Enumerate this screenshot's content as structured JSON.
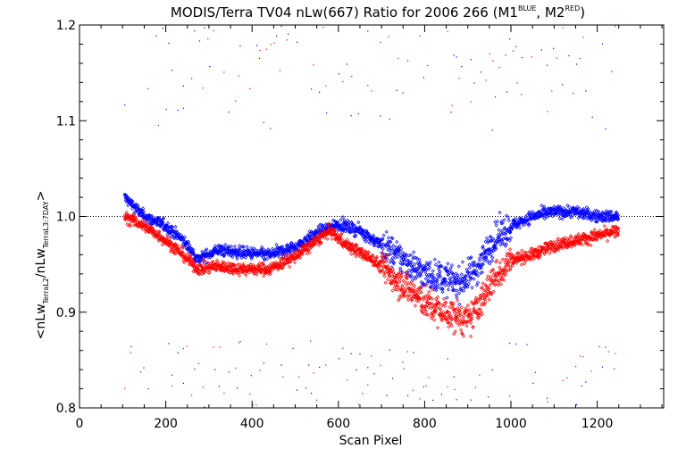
{
  "chart_data": {
    "type": "scatter",
    "title_main": "MODIS/Terra TV04 nLw(667) Ratio for 2006 266 (M1",
    "title_sup1": "BLUE",
    "title_mid": ", M2",
    "title_sup2": "RED",
    "title_end": ")",
    "xlabel": "Scan Pixel",
    "ylabel_parts": {
      "open": "<nLw",
      "sub1": "TerraL2",
      "mid": "/nLw",
      "sub2": "TerraL3:7DAY",
      "close": ">"
    },
    "xlim": [
      0,
      1354
    ],
    "ylim": [
      0.8,
      1.2
    ],
    "x_ticks": [
      0,
      200,
      400,
      600,
      800,
      1000,
      1200
    ],
    "x_tick_labels": [
      "0",
      "200",
      "400",
      "600",
      "800",
      "1000",
      "1200"
    ],
    "y_ticks": [
      0.8,
      0.9,
      1.0,
      1.1,
      1.2
    ],
    "y_tick_labels": [
      "0.8",
      "0.9",
      "1.0",
      "1.1",
      "1.2"
    ],
    "reference_line": 1.0,
    "series": [
      {
        "color": "#0000ff",
        "trend": [
          [
            105,
            1.02
          ],
          [
            150,
            1.0
          ],
          [
            200,
            0.99
          ],
          [
            240,
            0.975
          ],
          [
            275,
            0.955
          ],
          [
            320,
            0.965
          ],
          [
            380,
            0.962
          ],
          [
            440,
            0.96
          ],
          [
            500,
            0.968
          ],
          [
            560,
            0.985
          ],
          [
            600,
            0.992
          ],
          [
            650,
            0.985
          ],
          [
            700,
            0.97
          ],
          [
            750,
            0.955
          ],
          [
            800,
            0.94
          ],
          [
            850,
            0.935
          ],
          [
            880,
            0.93
          ],
          [
            920,
            0.945
          ],
          [
            960,
            0.975
          ],
          [
            1000,
            0.99
          ],
          [
            1050,
            1.0
          ],
          [
            1100,
            1.005
          ],
          [
            1150,
            1.005
          ],
          [
            1200,
            1.0
          ],
          [
            1250,
            1.0
          ]
        ],
        "outliers_high_x": [
          105,
          1254
        ],
        "outliers_low_x": [
          105,
          1254
        ]
      },
      {
        "color": "#ff0000",
        "trend": [
          [
            105,
            1.0
          ],
          [
            150,
            0.99
          ],
          [
            200,
            0.975
          ],
          [
            240,
            0.96
          ],
          [
            275,
            0.945
          ],
          [
            320,
            0.948
          ],
          [
            380,
            0.945
          ],
          [
            440,
            0.945
          ],
          [
            500,
            0.958
          ],
          [
            560,
            0.978
          ],
          [
            580,
            0.985
          ],
          [
            620,
            0.97
          ],
          [
            680,
            0.955
          ],
          [
            720,
            0.94
          ],
          [
            760,
            0.925
          ],
          [
            800,
            0.91
          ],
          [
            840,
            0.9
          ],
          [
            880,
            0.895
          ],
          [
            900,
            0.89
          ],
          [
            930,
            0.91
          ],
          [
            960,
            0.935
          ],
          [
            1000,
            0.955
          ],
          [
            1050,
            0.96
          ],
          [
            1100,
            0.97
          ],
          [
            1150,
            0.975
          ],
          [
            1200,
            0.98
          ],
          [
            1250,
            0.985
          ]
        ],
        "outliers_high_x": [
          105,
          1254
        ],
        "outliers_low_x": [
          105,
          1254
        ]
      }
    ]
  }
}
